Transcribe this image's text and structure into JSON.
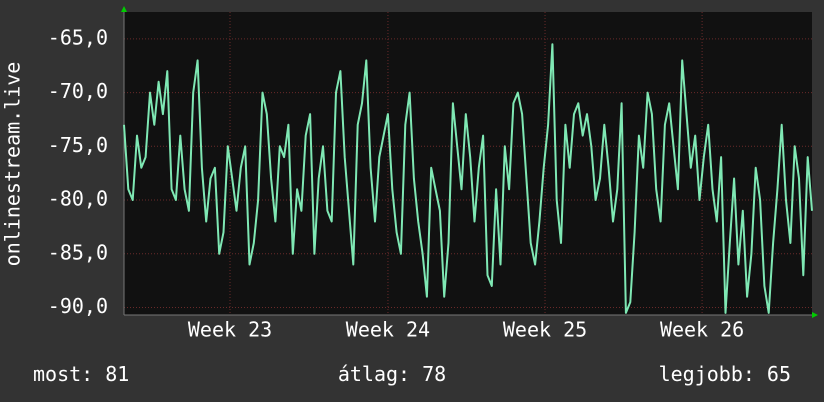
{
  "chart_data": {
    "type": "line",
    "y_label": "onlinestream.live",
    "color": "#7fe8b4",
    "values": [
      -73,
      -79,
      -80,
      -74,
      -77,
      -76,
      -70,
      -73,
      -69,
      -72,
      -68,
      -79,
      -80,
      -74,
      -79,
      -81,
      -70,
      -67,
      -77,
      -82,
      -78,
      -77,
      -85,
      -83,
      -75,
      -78,
      -81,
      -77,
      -75,
      -86,
      -84,
      -80,
      -70,
      -72,
      -78,
      -82,
      -75,
      -76,
      -73,
      -85,
      -79,
      -81,
      -74,
      -72,
      -85,
      -78,
      -75,
      -81,
      -82,
      -70,
      -68,
      -76,
      -81,
      -86,
      -73,
      -71,
      -67,
      -77,
      -82,
      -76,
      -74,
      -72,
      -79,
      -83,
      -85,
      -73,
      -70,
      -78,
      -82,
      -85,
      -89,
      -77,
      -79,
      -81,
      -89,
      -84,
      -71,
      -75,
      -79,
      -72,
      -76,
      -82,
      -77,
      -74,
      -87,
      -88,
      -79,
      -86,
      -75,
      -79,
      -71,
      -70,
      -72,
      -78,
      -84,
      -86,
      -82,
      -77,
      -73,
      -65.5,
      -80,
      -84,
      -73,
      -77,
      -72,
      -71,
      -74,
      -72,
      -75,
      -80,
      -78,
      -73,
      -77,
      -82,
      -79,
      -71,
      -90.5,
      -89.5,
      -83,
      -74,
      -77,
      -70,
      -72,
      -79,
      -82,
      -73,
      -71,
      -75,
      -79,
      -67,
      -72,
      -77,
      -74,
      -80,
      -76,
      -73,
      -79,
      -82,
      -76,
      -90.5,
      -84,
      -78,
      -86,
      -81,
      -89,
      -85,
      -77,
      -80,
      -88,
      -90.5,
      -84,
      -79,
      -73,
      -80,
      -84,
      -75,
      -78,
      -87,
      -76,
      -81
    ],
    "xlim": [
      0,
      159
    ],
    "xticks": [
      {
        "value": 24.5,
        "label": "Week 23"
      },
      {
        "value": 61,
        "label": "Week 24"
      },
      {
        "value": 97.3,
        "label": "Week 25"
      },
      {
        "value": 133.6,
        "label": "Week 26"
      }
    ],
    "ylim": [
      -90.7,
      -62.5
    ],
    "yticks": [
      {
        "value": -90,
        "label": "-90,0"
      },
      {
        "value": -85,
        "label": "-85,0"
      },
      {
        "value": -80,
        "label": "-80,0"
      },
      {
        "value": -75,
        "label": "-75,0"
      },
      {
        "value": -70,
        "label": "-70,0"
      },
      {
        "value": -65,
        "label": "-65,0"
      }
    ],
    "grid": true,
    "stats": [
      {
        "label": "most:",
        "value": 81
      },
      {
        "label": "átlag:",
        "value": 78
      },
      {
        "label": "legjobb:",
        "value": 65
      }
    ]
  }
}
